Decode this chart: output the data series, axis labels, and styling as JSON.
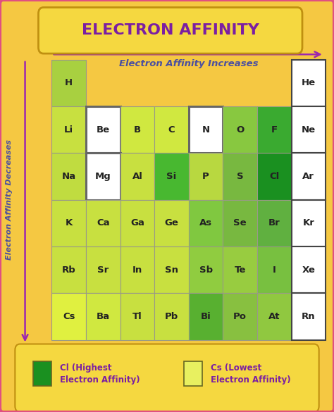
{
  "title": "ELECTRON AFFINITY",
  "subtitle": "Electron Affinity Increases",
  "ylabel": "Electron Affinity Decreases",
  "bg_color": "#F5C842",
  "outer_border_color": "#E05080",
  "title_box_color": "#F5D840",
  "title_color": "#7B1FA2",
  "subtitle_color": "#4A4FA0",
  "ylabel_color": "#4A4FA0",
  "arrow_color": "#9C27B0",
  "legend_box_color": "#F5D840",
  "legend_box_border": "#C09010",
  "text_color": "#222222",
  "grid": [
    [
      "H",
      "",
      "",
      "",
      "",
      "",
      "",
      "He"
    ],
    [
      "Li",
      "Be",
      "B",
      "C",
      "N",
      "O",
      "F",
      "Ne"
    ],
    [
      "Na",
      "Mg",
      "Al",
      "Si",
      "P",
      "S",
      "Cl",
      "Ar"
    ],
    [
      "K",
      "Ca",
      "Ga",
      "Ge",
      "As",
      "Se",
      "Br",
      "Kr"
    ],
    [
      "Rb",
      "Sr",
      "In",
      "Sn",
      "Sb",
      "Te",
      "I",
      "Xe"
    ],
    [
      "Cs",
      "Ba",
      "Tl",
      "Pb",
      "Bi",
      "Po",
      "At",
      "Rn"
    ]
  ],
  "colors": [
    [
      "#A8D040",
      "none",
      "none",
      "none",
      "none",
      "none",
      "none",
      "#FFFFFF"
    ],
    [
      "#C8E040",
      "#FFFFFF",
      "#D0E840",
      "#D0E840",
      "#FFFFFF",
      "#88C840",
      "#3AAA30",
      "#FFFFFF"
    ],
    [
      "#C0DC40",
      "#FFFFFF",
      "#C8E040",
      "#48B830",
      "#B8D840",
      "#78B840",
      "#1A9020",
      "#FFFFFF"
    ],
    [
      "#C8E040",
      "#C8E040",
      "#C8E040",
      "#C8E040",
      "#80C840",
      "#78B840",
      "#60B040",
      "#FFFFFF"
    ],
    [
      "#C8E040",
      "#C8E040",
      "#C8E040",
      "#C8E040",
      "#90CC40",
      "#98CC40",
      "#78C040",
      "#FFFFFF"
    ],
    [
      "#E0F040",
      "#D0E840",
      "#C8E040",
      "#C8E040",
      "#58B030",
      "#88C040",
      "#90C840",
      "#FFFFFF"
    ]
  ],
  "cell_border_color": "#AABB20",
  "noble_border_color": "#555555",
  "be_mg_border_color": "#555555",
  "n_border_color": "#555555"
}
